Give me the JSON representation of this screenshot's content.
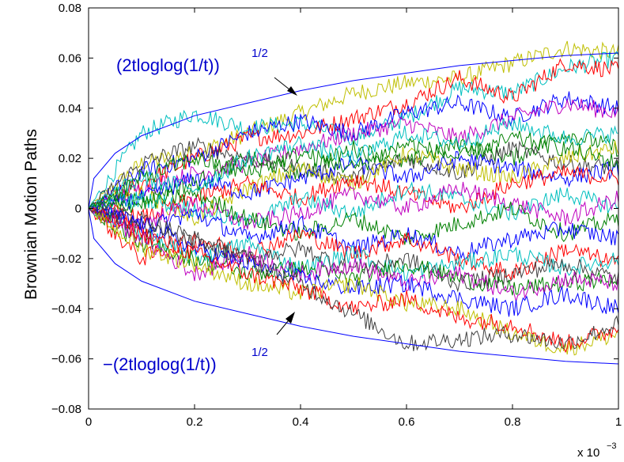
{
  "chart_data": {
    "type": "line",
    "title": "",
    "xlabel": "",
    "ylabel": "Brownian Motion Paths",
    "x_multiplier_label": "x 10",
    "x_multiplier_exponent": "−3",
    "xlim": [
      0,
      1
    ],
    "ylim": [
      -0.08,
      0.08
    ],
    "x_ticks": [
      0,
      0.2,
      0.4,
      0.6,
      0.8,
      1
    ],
    "x_tick_labels": [
      "0",
      "0.2",
      "0.4",
      "0.6",
      "0.8",
      "1"
    ],
    "y_ticks": [
      -0.08,
      -0.06,
      -0.04,
      -0.02,
      0,
      0.02,
      0.04,
      0.06,
      0.08
    ],
    "y_tick_labels": [
      "−0.08",
      "−0.06",
      "−0.04",
      "−0.02",
      "0",
      "0.02",
      "0.04",
      "0.06",
      "0.08"
    ],
    "grid": false,
    "envelope": {
      "color": "#0000ff",
      "upper_label": "(2tloglog(1/t))",
      "lower_label": "−(2tloglog(1/t))",
      "exponent_label": "1/2",
      "x": [
        0,
        0.01,
        0.05,
        0.1,
        0.2,
        0.3,
        0.4,
        0.5,
        0.6,
        0.7,
        0.8,
        0.9,
        1.0
      ],
      "upper": [
        0,
        0.012,
        0.022,
        0.029,
        0.037,
        0.042,
        0.047,
        0.051,
        0.054,
        0.057,
        0.059,
        0.061,
        0.062
      ],
      "lower": [
        0,
        -0.012,
        -0.022,
        -0.029,
        -0.037,
        -0.042,
        -0.047,
        -0.051,
        -0.054,
        -0.057,
        -0.059,
        -0.061,
        -0.062
      ]
    },
    "path_x": [
      0,
      0.1,
      0.2,
      0.3,
      0.4,
      0.5,
      0.6,
      0.7,
      0.8,
      0.9,
      1.0
    ],
    "series": [
      {
        "color": "#bfbf00",
        "values": [
          0,
          0.018,
          0.022,
          0.03,
          0.038,
          0.046,
          0.05,
          0.052,
          0.058,
          0.064,
          0.062
        ]
      },
      {
        "color": "#00bfbf",
        "values": [
          0,
          0.03,
          0.038,
          0.032,
          0.034,
          0.028,
          0.036,
          0.048,
          0.046,
          0.056,
          0.06
        ]
      },
      {
        "color": "#ff0000",
        "values": [
          0,
          0.01,
          0.02,
          0.028,
          0.03,
          0.036,
          0.042,
          0.052,
          0.044,
          0.058,
          0.055
        ]
      },
      {
        "color": "#0000ff",
        "values": [
          0,
          0.015,
          0.02,
          0.03,
          0.035,
          0.03,
          0.038,
          0.042,
          0.036,
          0.044,
          0.04
        ]
      },
      {
        "color": "#bf00bf",
        "values": [
          0,
          0.008,
          0.014,
          0.018,
          0.024,
          0.03,
          0.034,
          0.028,
          0.036,
          0.042,
          0.038
        ]
      },
      {
        "color": "#008000",
        "values": [
          0,
          0.005,
          0.01,
          0.02,
          0.014,
          0.024,
          0.018,
          0.026,
          0.02,
          0.03,
          0.024
        ]
      },
      {
        "color": "#404040",
        "values": [
          0,
          0.018,
          0.025,
          0.02,
          0.016,
          0.012,
          0.02,
          0.014,
          0.024,
          0.018,
          0.016
        ]
      },
      {
        "color": "#bfbf00",
        "values": [
          0,
          0.006,
          -0.004,
          0.008,
          0.016,
          0.01,
          0.022,
          0.016,
          0.012,
          0.02,
          0.024
        ]
      },
      {
        "color": "#0000ff",
        "values": [
          0,
          0.004,
          0.012,
          0.006,
          0.012,
          0.018,
          0.012,
          0.02,
          0.016,
          0.012,
          0.016
        ]
      },
      {
        "color": "#ff0000",
        "values": [
          0,
          -0.004,
          0.004,
          0.01,
          0.004,
          0.012,
          0.006,
          0.0,
          0.01,
          0.014,
          0.012
        ]
      },
      {
        "color": "#00bfbf",
        "values": [
          0,
          0.004,
          0.0,
          -0.006,
          0.004,
          -0.002,
          0.008,
          0.004,
          -0.002,
          0.006,
          0.0
        ]
      },
      {
        "color": "#bf00bf",
        "values": [
          0,
          -0.006,
          0.002,
          -0.006,
          -0.002,
          0.006,
          0.0,
          0.008,
          0.002,
          -0.004,
          0.004
        ]
      },
      {
        "color": "#008000",
        "values": [
          0,
          0.002,
          0.006,
          -0.004,
          -0.01,
          -0.004,
          -0.012,
          -0.006,
          0.0,
          -0.01,
          -0.004
        ]
      },
      {
        "color": "#0000ff",
        "values": [
          0,
          -0.008,
          -0.002,
          -0.012,
          -0.006,
          -0.016,
          -0.01,
          -0.018,
          -0.012,
          -0.008,
          -0.012
        ]
      },
      {
        "color": "#ff0000",
        "values": [
          0,
          -0.02,
          -0.012,
          -0.018,
          -0.01,
          -0.018,
          -0.012,
          -0.02,
          -0.026,
          -0.016,
          -0.022
        ]
      },
      {
        "color": "#00bfbf",
        "values": [
          0,
          -0.01,
          -0.02,
          -0.014,
          -0.024,
          -0.018,
          -0.026,
          -0.022,
          -0.018,
          -0.024,
          -0.02
        ]
      },
      {
        "color": "#404040",
        "values": [
          0,
          -0.008,
          -0.014,
          -0.02,
          -0.016,
          -0.024,
          -0.02,
          -0.03,
          -0.026,
          -0.022,
          -0.028
        ]
      },
      {
        "color": "#008000",
        "values": [
          0,
          -0.014,
          -0.02,
          -0.026,
          -0.024,
          -0.028,
          -0.022,
          -0.028,
          -0.032,
          -0.03,
          -0.028
        ]
      },
      {
        "color": "#bf00bf",
        "values": [
          0,
          -0.012,
          -0.026,
          -0.018,
          -0.026,
          -0.022,
          -0.03,
          -0.026,
          -0.034,
          -0.028,
          -0.03
        ]
      },
      {
        "color": "#0000ff",
        "values": [
          0,
          -0.006,
          -0.016,
          -0.022,
          -0.028,
          -0.032,
          -0.03,
          -0.036,
          -0.04,
          -0.034,
          -0.04
        ]
      },
      {
        "color": "#bfbf00",
        "values": [
          0,
          -0.016,
          -0.022,
          -0.03,
          -0.034,
          -0.03,
          -0.038,
          -0.04,
          -0.05,
          -0.056,
          -0.05
        ]
      },
      {
        "color": "#ff0000",
        "values": [
          0,
          -0.01,
          -0.018,
          -0.026,
          -0.032,
          -0.04,
          -0.036,
          -0.044,
          -0.046,
          -0.054,
          -0.048
        ]
      },
      {
        "color": "#404040",
        "values": [
          0,
          -0.004,
          -0.012,
          -0.02,
          -0.03,
          -0.042,
          -0.054,
          -0.052,
          -0.05,
          -0.054,
          -0.046
        ]
      },
      {
        "color": "#00bfbf",
        "values": [
          0,
          0.012,
          0.008,
          0.02,
          0.026,
          0.02,
          0.03,
          0.026,
          0.034,
          0.028,
          0.03
        ]
      },
      {
        "color": "#008000",
        "values": [
          0,
          0.012,
          0.02,
          0.014,
          0.022,
          0.016,
          0.026,
          0.02,
          0.028,
          0.024,
          0.018
        ]
      }
    ]
  }
}
